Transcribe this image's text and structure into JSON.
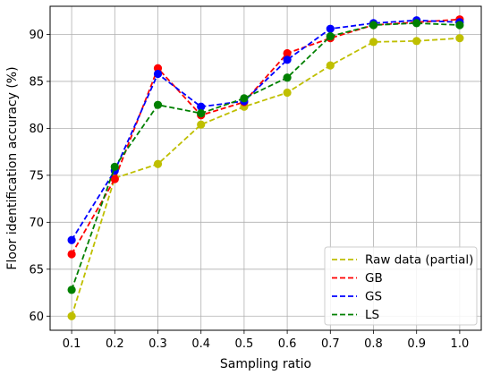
{
  "chart_data": {
    "type": "line",
    "xlabel": "Sampling ratio",
    "ylabel": "Floor identification accuracy (%)",
    "x": [
      0.1,
      0.2,
      0.3,
      0.4,
      0.5,
      0.6,
      0.7,
      0.8,
      0.9,
      1.0
    ],
    "x_tick_labels": [
      "0.1",
      "0.2",
      "0.3",
      "0.4",
      "0.5",
      "0.6",
      "0.7",
      "0.8",
      "0.9",
      "1.0"
    ],
    "y_ticks": [
      60,
      65,
      70,
      75,
      80,
      85,
      90
    ],
    "y_tick_labels": [
      "60",
      "65",
      "70",
      "75",
      "80",
      "85",
      "90"
    ],
    "xlim": [
      0.05,
      1.05
    ],
    "ylim": [
      58.5,
      93.0
    ],
    "grid": true,
    "legend_position": "bottom-right",
    "series": [
      {
        "name": "Raw data (partial)",
        "color": "#bfbf00",
        "values": [
          60.0,
          74.7,
          76.2,
          80.4,
          82.3,
          83.8,
          86.7,
          89.2,
          89.3,
          89.6
        ]
      },
      {
        "name": "GB",
        "color": "#ff0000",
        "values": [
          66.6,
          74.6,
          86.4,
          81.4,
          82.8,
          88.0,
          89.6,
          91.0,
          91.3,
          91.6
        ]
      },
      {
        "name": "GS",
        "color": "#0000ff",
        "values": [
          68.1,
          75.5,
          85.8,
          82.3,
          82.9,
          87.3,
          90.6,
          91.2,
          91.5,
          91.3
        ]
      },
      {
        "name": "LS",
        "color": "#008000",
        "values": [
          62.8,
          75.9,
          82.5,
          81.6,
          83.2,
          85.4,
          89.8,
          91.0,
          91.2,
          91.0
        ]
      }
    ]
  }
}
